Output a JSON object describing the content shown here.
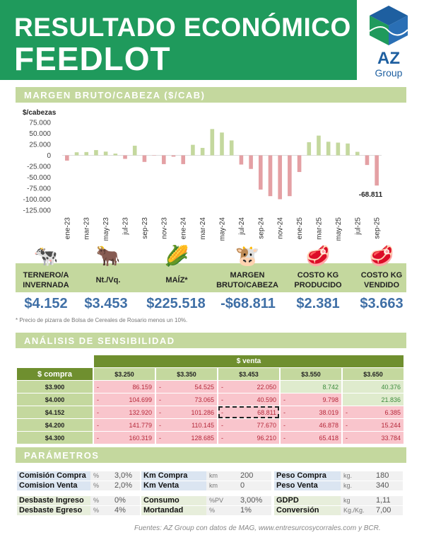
{
  "header": {
    "title_line1": "RESULTADO ECONÓMICO",
    "title_line2": "FEEDLOT",
    "logo_text": "AZ",
    "logo_sub": "Group",
    "brand_color": "#1f9a5c"
  },
  "section_margin": "MARGEN BRUTO/CABEZA ($/CAB)",
  "chart_data": {
    "type": "bar",
    "ylabel": "$/cabezas",
    "ylim": [
      -125000,
      75000
    ],
    "yticks": [
      "75.000",
      "50.000",
      "25.000",
      "0",
      "-25.000",
      "-50.000",
      "-75.000",
      "-100.000",
      "-125.000"
    ],
    "categories": [
      "ene-23",
      "feb-23",
      "mar-23",
      "abr-23",
      "may-23",
      "jun-23",
      "jul-23",
      "ago-23",
      "sep-23",
      "oct-23",
      "nov-23",
      "dic-23",
      "ene-24",
      "feb-24",
      "mar-24",
      "abr-24",
      "may-24",
      "jun-24",
      "jul-24",
      "ago-24",
      "sep-24",
      "oct-24",
      "nov-24",
      "dic-24",
      "ene-25",
      "feb-25",
      "mar-25",
      "abr-25",
      "may-25",
      "jun-25",
      "jul-25",
      "ago-25",
      "sep-25"
    ],
    "xtick_labels": [
      "ene-23",
      "mar-23",
      "may-23",
      "jul-23",
      "sep-23",
      "nov-23",
      "ene-24",
      "mar-24",
      "may-24",
      "jul-24",
      "sep-24",
      "nov-24",
      "ene-25",
      "mar-25",
      "may-25",
      "jul-25",
      "sep-25"
    ],
    "values": [
      -12000,
      7000,
      7500,
      12000,
      8500,
      4000,
      -8000,
      22000,
      -15000,
      -500,
      -20000,
      -3000,
      -20000,
      24000,
      17000,
      60000,
      52000,
      34000,
      -21000,
      -31000,
      -78000,
      -93000,
      -100000,
      -93000,
      -38000,
      30000,
      45000,
      31000,
      29000,
      27000,
      8000,
      -22000,
      -68811
    ],
    "data_label": "-68.811",
    "positive_color": "#c4d89e",
    "negative_color": "#e4a0a4"
  },
  "kpis": [
    {
      "icon": "calf-icon",
      "label": "TERNERO/A INVERNADA",
      "value": "$4.152"
    },
    {
      "icon": "steer-icon",
      "label": "Nt./Vq.",
      "value": "$3.453"
    },
    {
      "icon": "corn-icon",
      "label": "MAÍZ*",
      "value": "$225.518"
    },
    {
      "icon": "cow-head-icon",
      "label": "MARGEN BRUTO/CABEZA",
      "value": "-$68.811"
    },
    {
      "icon": "meat-dollar-icon",
      "label": "COSTO KG PRODUCIDO",
      "value": "$2.381"
    },
    {
      "icon": "meat-kg-icon",
      "label": "COSTO KG VENDIDO",
      "value": "$3.663"
    }
  ],
  "footnote": "* Precio de pizarra de Bolsa de Cereales de Rosario menos un 10%.",
  "section_sens": "ANÁLISIS DE SENSIBILIDAD",
  "sens": {
    "venta_header": "$ venta",
    "compra_header": "$ compra",
    "venta": [
      "$3.250",
      "$3.350",
      "$3.453",
      "$3.550",
      "$3.650"
    ],
    "rows": [
      {
        "compra": "$3.900",
        "cells": [
          [
            "-",
            "86.159"
          ],
          [
            "-",
            "54.525"
          ],
          [
            "-",
            "22.050"
          ],
          [
            "",
            "8.742"
          ],
          [
            "",
            "40.376"
          ]
        ]
      },
      {
        "compra": "$4.000",
        "cells": [
          [
            "-",
            "104.699"
          ],
          [
            "-",
            "73.065"
          ],
          [
            "-",
            "40.590"
          ],
          [
            "-",
            "9.798"
          ],
          [
            "",
            "21.836"
          ]
        ]
      },
      {
        "compra": "$4.152",
        "cells": [
          [
            "-",
            "132.920"
          ],
          [
            "-",
            "101.286"
          ],
          [
            "-",
            "68.811"
          ],
          [
            "-",
            "38.019"
          ],
          [
            "-",
            "6.385"
          ]
        ]
      },
      {
        "compra": "$4.200",
        "cells": [
          [
            "-",
            "141.779"
          ],
          [
            "-",
            "110.145"
          ],
          [
            "-",
            "77.670"
          ],
          [
            "-",
            "46.878"
          ],
          [
            "-",
            "15.244"
          ]
        ]
      },
      {
        "compra": "$4.300",
        "cells": [
          [
            "-",
            "160.319"
          ],
          [
            "-",
            "128.685"
          ],
          [
            "-",
            "96.210"
          ],
          [
            "-",
            "65.418"
          ],
          [
            "-",
            "33.784"
          ]
        ]
      }
    ]
  },
  "section_params": "PARÁMETROS",
  "params": [
    [
      {
        "l": "Comisión Compra",
        "u": "%",
        "v": "3,0%"
      },
      {
        "l": "Km Compra",
        "u": "km",
        "v": "200"
      },
      {
        "l": "Peso Compra",
        "u": "kg.",
        "v": "180"
      }
    ],
    [
      {
        "l": "Comision Venta",
        "u": "%",
        "v": "2,0%"
      },
      {
        "l": "Km Venta",
        "u": "km",
        "v": "0"
      },
      {
        "l": "Peso Venta",
        "u": "kg.",
        "v": "340"
      }
    ],
    [
      {
        "l": "Desbaste Ingreso",
        "u": "%",
        "v": "0%"
      },
      {
        "l": "Consumo",
        "u": "%PV",
        "v": "3,00%"
      },
      {
        "l": "GDPD",
        "u": "kg",
        "v": "1,11"
      }
    ],
    [
      {
        "l": "Desbaste Egreso",
        "u": "%",
        "v": "4%"
      },
      {
        "l": "Mortandad",
        "u": "%",
        "v": "1%"
      },
      {
        "l": "Conversión",
        "u": "Kg./Kg.",
        "v": "7,00"
      }
    ]
  ],
  "source": "Fuentes: AZ Group con datos de MAG, www.entresurcosycorrales.com y BCR."
}
